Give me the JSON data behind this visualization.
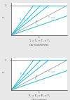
{
  "bg_color": "#e8e8e8",
  "plot_bg": "#ffffff",
  "title_a": "(a) isotherms",
  "title_b": "(b) isobars",
  "xlabel": "t",
  "ylabel": "x",
  "ylim": [
    0,
    1.08
  ],
  "xlim": [
    0,
    1.0
  ],
  "lines_a": {
    "cyan_slopes": [
      2.5,
      1.9,
      1.5,
      0.65
    ],
    "cyan_labels": [
      "T₁",
      "T₂",
      "T₃",
      "T₄"
    ],
    "gray_slope": 1.0,
    "gray_label": "P sat",
    "annotation": "T₁ > T₂ > T₃ > T₄"
  },
  "lines_b": {
    "cyan_slopes": [
      2.5,
      1.9,
      1.5,
      0.65
    ],
    "cyan_labels": [
      "P₁",
      "P₂",
      "P₃",
      "P₄"
    ],
    "gray_slope": 1.0,
    "gray_label": "P sat",
    "annotation": "P₁ > P₂ > P₃ > P₄"
  },
  "cyan_color": "#29b6d0",
  "gray_color": "#aaaaaa",
  "dark_gray": "#444444",
  "line_width": 0.7,
  "font_size": 3.2,
  "label_font_size": 2.8,
  "annot_font_size": 2.6,
  "title_font_size": 3.0
}
